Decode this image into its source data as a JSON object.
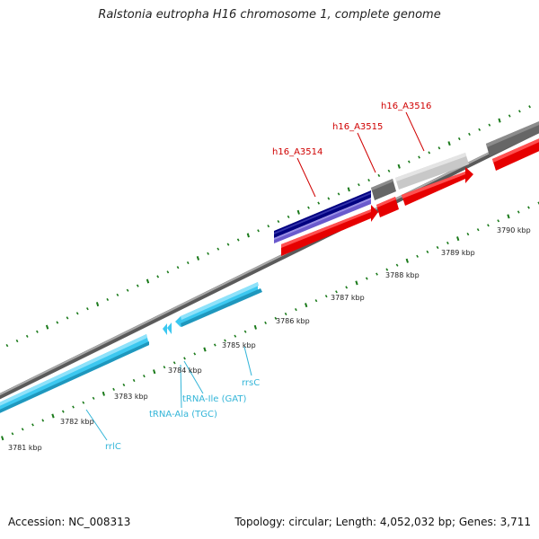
{
  "title": "Ralstonia eutropha H16 chromosome 1, complete genome",
  "footer": {
    "accession": "Accession: NC_008313",
    "summary": "Topology: circular; Length: 4,052,032 bp; Genes: 3,711"
  },
  "kbp_labels": {
    "k3781": "3781 kbp",
    "k3782": "3782 kbp",
    "k3783": "3783 kbp",
    "k3784": "3784 kbp",
    "k3785": "3785 kbp",
    "k3786": "3786 kbp",
    "k3787": "3787 kbp",
    "k3788": "3788 kbp",
    "k3789": "3789 kbp",
    "k3790": "3790 kbp"
  },
  "gene_labels": {
    "h16_A3514": "h16_A3514",
    "h16_A3515": "h16_A3515",
    "h16_A3516": "h16_A3516",
    "rrsC": "rrsC",
    "tRNA_Ile": "tRNA-Ile (GAT)",
    "tRNA_Ala": "tRNA-Ala (TGC)",
    "rrlC": "rrlC"
  },
  "colors": {
    "backbone": "#8a8a8a",
    "tick": "#1a7a1a",
    "cds_red": "#e60000",
    "cds_navy": "#000080",
    "cds_purple": "#6a5acd",
    "cds_dark_gray": "#666666",
    "cds_light_gray": "#c8c8c8",
    "rrna_cyan": "#3cc8f0",
    "label_red": "#d00000",
    "label_cyan": "#33b5d8"
  }
}
